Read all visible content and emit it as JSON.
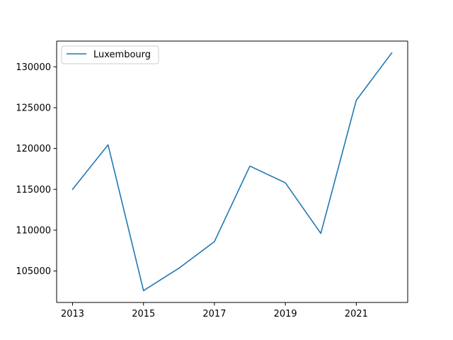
{
  "chart_data": {
    "type": "line",
    "title": "",
    "xlabel": "",
    "ylabel": "",
    "x": [
      2013,
      2014,
      2015,
      2016,
      2017,
      2018,
      2019,
      2020,
      2021,
      2022
    ],
    "series": [
      {
        "name": "Luxembourg",
        "color": "#1f77b4",
        "values": [
          115000,
          120450,
          102600,
          105350,
          108600,
          117850,
          115800,
          109600,
          125900,
          131700
        ]
      }
    ],
    "xlim": [
      2012.55,
      2022.45
    ],
    "ylim": [
      101150,
      133150
    ],
    "xticks": [
      2013,
      2015,
      2017,
      2019,
      2021
    ],
    "xtick_labels": [
      "2013",
      "2015",
      "2017",
      "2019",
      "2021"
    ],
    "yticks": [
      105000,
      110000,
      115000,
      120000,
      125000,
      130000
    ],
    "ytick_labels": [
      "105000",
      "110000",
      "115000",
      "120000",
      "125000",
      "130000"
    ],
    "grid": false,
    "legend_position": "upper-left"
  }
}
